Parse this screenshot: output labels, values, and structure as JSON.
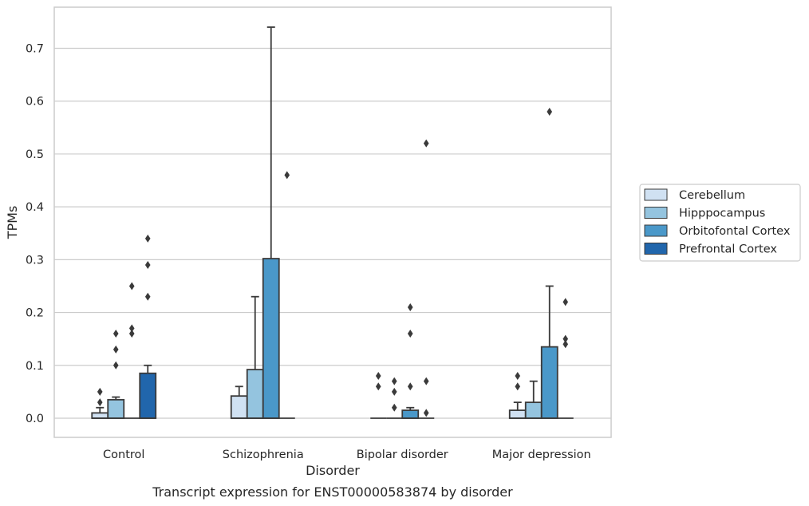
{
  "chart_data": {
    "type": "box",
    "caption": "Transcript expression for ENST00000583874 by disorder",
    "xlabel": "Disorder",
    "ylabel": "TPMs",
    "ylim": [
      -0.035,
      0.78
    ],
    "yticks": [
      0.0,
      0.1,
      0.2,
      0.3,
      0.4,
      0.5,
      0.6,
      0.7
    ],
    "ytick_labels": [
      "0.0",
      "0.1",
      "0.2",
      "0.3",
      "0.4",
      "0.5",
      "0.6",
      "0.7"
    ],
    "grid": "horizontal",
    "legend_position": "right",
    "categories": [
      "Control",
      "Schizophrenia",
      "Bipolar disorder",
      "Major depression"
    ],
    "series": [
      {
        "name": "Cerebellum",
        "color": "#d0e1f2",
        "boxes": [
          {
            "q1": 0.0,
            "median": 0.0,
            "q3": 0.01,
            "whisker_low": 0.0,
            "whisker_high": 0.02,
            "outliers": [
              0.03,
              0.05
            ]
          },
          {
            "q1": 0.0,
            "median": 0.0,
            "q3": 0.042,
            "whisker_low": 0.0,
            "whisker_high": 0.06,
            "outliers": []
          },
          {
            "q1": 0.0,
            "median": 0.0,
            "q3": 0.0,
            "whisker_low": 0.0,
            "whisker_high": 0.0,
            "outliers": [
              0.06,
              0.08
            ]
          },
          {
            "q1": 0.0,
            "median": 0.0,
            "q3": 0.015,
            "whisker_low": 0.0,
            "whisker_high": 0.03,
            "outliers": [
              0.06,
              0.08
            ]
          }
        ]
      },
      {
        "name": "Hipppocampus",
        "color": "#94c4df",
        "boxes": [
          {
            "q1": 0.0,
            "median": 0.0,
            "q3": 0.035,
            "whisker_low": 0.0,
            "whisker_high": 0.04,
            "outliers": [
              0.1,
              0.13,
              0.16
            ]
          },
          {
            "q1": 0.0,
            "median": 0.0,
            "q3": 0.092,
            "whisker_low": 0.0,
            "whisker_high": 0.23,
            "outliers": []
          },
          {
            "q1": 0.0,
            "median": 0.0,
            "q3": 0.0,
            "whisker_low": 0.0,
            "whisker_high": 0.0,
            "outliers": [
              0.02,
              0.05,
              0.07
            ]
          },
          {
            "q1": 0.0,
            "median": 0.0,
            "q3": 0.03,
            "whisker_low": 0.0,
            "whisker_high": 0.07,
            "outliers": []
          }
        ]
      },
      {
        "name": "Orbitofontal Cortex",
        "color": "#4a98c9",
        "boxes": [
          {
            "q1": 0.0,
            "median": 0.0,
            "q3": 0.0,
            "whisker_low": 0.0,
            "whisker_high": 0.0,
            "outliers": [
              0.16,
              0.17,
              0.25
            ]
          },
          {
            "q1": 0.0,
            "median": 0.0,
            "q3": 0.302,
            "whisker_low": 0.0,
            "whisker_high": 0.74,
            "outliers": []
          },
          {
            "q1": 0.0,
            "median": 0.0,
            "q3": 0.015,
            "whisker_low": 0.0,
            "whisker_high": 0.02,
            "outliers": [
              0.06,
              0.16,
              0.21
            ]
          },
          {
            "q1": 0.0,
            "median": 0.0,
            "q3": 0.135,
            "whisker_low": 0.0,
            "whisker_high": 0.25,
            "outliers": [
              0.58
            ]
          }
        ]
      },
      {
        "name": "Prefrontal Cortex",
        "color": "#2166ac",
        "boxes": [
          {
            "q1": 0.0,
            "median": 0.0,
            "q3": 0.085,
            "whisker_low": 0.0,
            "whisker_high": 0.1,
            "outliers": [
              0.23,
              0.29,
              0.34
            ]
          },
          {
            "q1": 0.0,
            "median": 0.0,
            "q3": 0.0,
            "whisker_low": 0.0,
            "whisker_high": 0.0,
            "outliers": [
              0.46
            ]
          },
          {
            "q1": 0.0,
            "median": 0.0,
            "q3": 0.0,
            "whisker_low": 0.0,
            "whisker_high": 0.0,
            "outliers": [
              0.01,
              0.07,
              0.52
            ]
          },
          {
            "q1": 0.0,
            "median": 0.0,
            "q3": 0.0,
            "whisker_low": 0.0,
            "whisker_high": 0.0,
            "outliers": [
              0.14,
              0.15,
              0.22
            ]
          }
        ]
      }
    ]
  }
}
